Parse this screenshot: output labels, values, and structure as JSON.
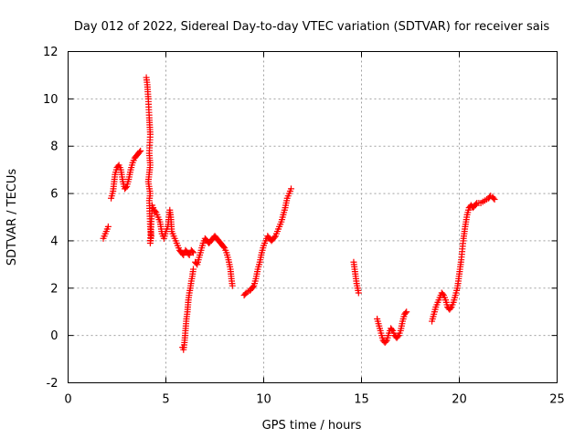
{
  "chart_data": {
    "type": "scatter",
    "title": "Day 012 of 2022, Sidereal Day-to-day VTEC variation (SDTVAR) for receiver sais",
    "xlabel": "GPS time / hours",
    "ylabel": "SDTVAR / TECUs",
    "xlim": [
      0,
      25
    ],
    "ylim": [
      -2,
      12
    ],
    "xticks": [
      "0",
      "5",
      "10",
      "15",
      "20",
      "25"
    ],
    "yticks": [
      "-2",
      "0",
      "2",
      "4",
      "6",
      "8",
      "10",
      "12"
    ],
    "grid": true,
    "marker": "+",
    "color": "#ff0000",
    "series": [
      {
        "name": "SDTVAR",
        "segments": [
          [
            [
              1.8,
              4.1
            ],
            [
              1.9,
              4.3
            ],
            [
              2.0,
              4.5
            ],
            [
              2.05,
              4.6
            ]
          ],
          [
            [
              2.2,
              5.8
            ],
            [
              2.3,
              6.1
            ],
            [
              2.4,
              6.8
            ],
            [
              2.5,
              7.1
            ],
            [
              2.6,
              7.2
            ],
            [
              2.7,
              7.0
            ],
            [
              2.8,
              6.5
            ],
            [
              2.9,
              6.2
            ],
            [
              3.0,
              6.3
            ],
            [
              3.1,
              6.6
            ],
            [
              3.2,
              7.0
            ],
            [
              3.3,
              7.3
            ],
            [
              3.4,
              7.5
            ],
            [
              3.5,
              7.6
            ],
            [
              3.6,
              7.7
            ],
            [
              3.7,
              7.8
            ]
          ],
          [
            [
              4.0,
              10.9
            ],
            [
              4.05,
              10.6
            ],
            [
              4.1,
              10.0
            ],
            [
              4.15,
              9.2
            ],
            [
              4.2,
              8.5
            ],
            [
              4.15,
              7.7
            ],
            [
              4.2,
              7.2
            ],
            [
              4.1,
              6.5
            ],
            [
              4.2,
              6.0
            ],
            [
              4.15,
              5.7
            ],
            [
              4.2,
              4.6
            ],
            [
              4.25,
              4.2
            ],
            [
              4.2,
              3.9
            ],
            [
              4.3,
              5.5
            ],
            [
              4.4,
              5.3
            ],
            [
              4.5,
              5.2
            ],
            [
              4.6,
              5.0
            ],
            [
              4.7,
              4.8
            ],
            [
              4.8,
              4.3
            ],
            [
              4.9,
              4.1
            ],
            [
              5.0,
              4.4
            ],
            [
              5.1,
              4.6
            ],
            [
              5.2,
              5.3
            ],
            [
              5.25,
              5.0
            ],
            [
              5.3,
              4.4
            ],
            [
              5.5,
              4.0
            ],
            [
              5.6,
              3.8
            ],
            [
              5.7,
              3.6
            ],
            [
              5.8,
              3.5
            ],
            [
              5.9,
              3.4
            ],
            [
              6.0,
              3.6
            ],
            [
              6.1,
              3.5
            ],
            [
              6.2,
              3.4
            ],
            [
              6.3,
              3.6
            ],
            [
              6.4,
              3.5
            ]
          ],
          [
            [
              5.85,
              -0.5
            ],
            [
              5.9,
              -0.6
            ],
            [
              5.95,
              -0.3
            ],
            [
              6.0,
              0.2
            ],
            [
              6.05,
              0.7
            ],
            [
              6.1,
              1.0
            ],
            [
              6.15,
              1.5
            ],
            [
              6.2,
              1.8
            ],
            [
              6.25,
              2.0
            ],
            [
              6.3,
              2.3
            ],
            [
              6.35,
              2.5
            ],
            [
              6.4,
              2.8
            ]
          ],
          [
            [
              6.5,
              3.1
            ],
            [
              6.6,
              3.0
            ],
            [
              6.7,
              3.3
            ],
            [
              6.8,
              3.6
            ],
            [
              6.9,
              3.9
            ],
            [
              7.0,
              4.1
            ],
            [
              7.1,
              4.0
            ],
            [
              7.2,
              3.9
            ],
            [
              7.3,
              4.0
            ],
            [
              7.4,
              4.1
            ],
            [
              7.5,
              4.2
            ],
            [
              7.6,
              4.1
            ],
            [
              7.7,
              4.0
            ],
            [
              7.8,
              3.9
            ],
            [
              7.9,
              3.8
            ],
            [
              8.0,
              3.7
            ],
            [
              8.1,
              3.5
            ],
            [
              8.2,
              3.2
            ],
            [
              8.3,
              2.8
            ],
            [
              8.35,
              2.4
            ],
            [
              8.4,
              2.1
            ]
          ],
          [
            [
              9.0,
              1.7
            ],
            [
              9.1,
              1.8
            ],
            [
              9.2,
              1.85
            ],
            [
              9.3,
              1.9
            ],
            [
              9.4,
              2.0
            ],
            [
              9.5,
              2.1
            ],
            [
              9.6,
              2.4
            ],
            [
              9.7,
              2.8
            ],
            [
              9.8,
              3.1
            ],
            [
              9.9,
              3.5
            ],
            [
              10.0,
              3.8
            ],
            [
              10.1,
              4.0
            ],
            [
              10.2,
              4.2
            ],
            [
              10.3,
              4.1
            ],
            [
              10.4,
              4.0
            ],
            [
              10.5,
              4.1
            ],
            [
              10.6,
              4.2
            ],
            [
              10.7,
              4.4
            ],
            [
              10.8,
              4.6
            ],
            [
              10.9,
              4.8
            ],
            [
              11.0,
              5.1
            ],
            [
              11.1,
              5.4
            ],
            [
              11.2,
              5.8
            ],
            [
              11.3,
              6.0
            ],
            [
              11.4,
              6.2
            ]
          ],
          [
            [
              14.6,
              3.1
            ],
            [
              14.65,
              2.8
            ],
            [
              14.7,
              2.5
            ],
            [
              14.75,
              2.2
            ],
            [
              14.8,
              2.0
            ],
            [
              14.85,
              1.8
            ]
          ],
          [
            [
              15.8,
              0.7
            ],
            [
              15.9,
              0.4
            ],
            [
              16.0,
              0.1
            ],
            [
              16.1,
              -0.2
            ],
            [
              16.2,
              -0.3
            ],
            [
              16.3,
              -0.2
            ],
            [
              16.4,
              0.1
            ],
            [
              16.5,
              0.3
            ],
            [
              16.6,
              0.2
            ],
            [
              16.7,
              0.0
            ],
            [
              16.8,
              -0.1
            ],
            [
              16.9,
              0.0
            ],
            [
              17.0,
              0.2
            ],
            [
              17.1,
              0.6
            ],
            [
              17.2,
              0.9
            ],
            [
              17.3,
              1.0
            ]
          ],
          [
            [
              18.6,
              0.6
            ],
            [
              18.7,
              0.9
            ],
            [
              18.8,
              1.2
            ],
            [
              18.9,
              1.4
            ],
            [
              19.0,
              1.6
            ],
            [
              19.1,
              1.8
            ],
            [
              19.2,
              1.7
            ],
            [
              19.3,
              1.5
            ],
            [
              19.4,
              1.2
            ],
            [
              19.5,
              1.1
            ],
            [
              19.6,
              1.2
            ],
            [
              19.7,
              1.4
            ],
            [
              19.8,
              1.7
            ],
            [
              19.9,
              2.0
            ],
            [
              20.0,
              2.6
            ],
            [
              20.1,
              3.2
            ],
            [
              20.2,
              4.0
            ],
            [
              20.3,
              4.6
            ],
            [
              20.4,
              5.1
            ],
            [
              20.5,
              5.4
            ],
            [
              20.6,
              5.5
            ],
            [
              20.7,
              5.4
            ],
            [
              20.8,
              5.5
            ],
            [
              20.9,
              5.6
            ],
            [
              21.0,
              5.6
            ],
            [
              21.1,
              5.6
            ],
            [
              21.2,
              5.65
            ],
            [
              21.3,
              5.7
            ],
            [
              21.4,
              5.75
            ],
            [
              21.5,
              5.8
            ],
            [
              21.6,
              5.9
            ],
            [
              21.7,
              5.85
            ],
            [
              21.8,
              5.75
            ]
          ]
        ]
      }
    ]
  }
}
